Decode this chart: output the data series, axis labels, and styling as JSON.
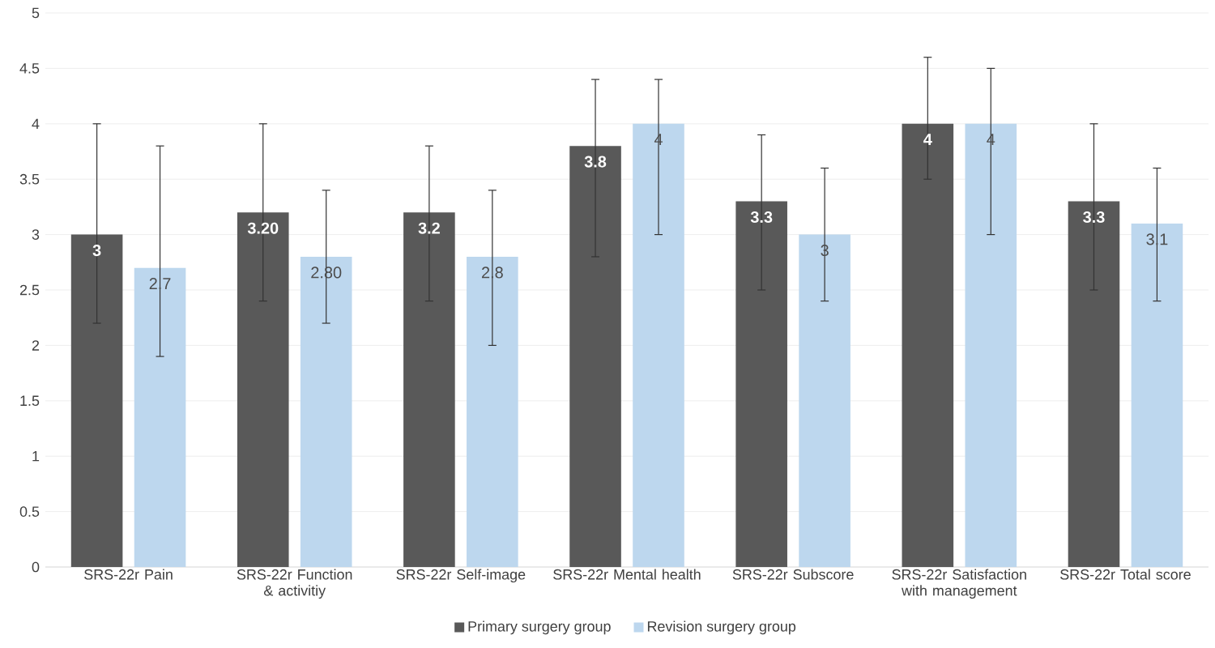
{
  "chart_data": {
    "type": "bar",
    "categories": [
      "SRS-22r Pain",
      "SRS-22r Function & activitiy",
      "SRS-22r Self-image",
      "SRS-22r Mental health",
      "SRS-22r Subscore",
      "SRS-22r Satisfaction with management",
      "SRS-22r Total score"
    ],
    "series": [
      {
        "name": "Primary surgery group",
        "color": "#595959",
        "values": [
          3,
          3.2,
          3.2,
          3.8,
          3.3,
          4,
          3.3
        ],
        "value_labels": [
          "3",
          "3.20",
          "3.2",
          "3.8",
          "3.3",
          "4",
          "3.3"
        ],
        "errors": [
          [
            2.2,
            4.0
          ],
          [
            2.4,
            4.0
          ],
          [
            2.4,
            3.8
          ],
          [
            2.8,
            4.4
          ],
          [
            2.5,
            3.9
          ],
          [
            3.5,
            4.6
          ],
          [
            2.5,
            4.0
          ]
        ]
      },
      {
        "name": "Revision surgery group",
        "color": "#bdd7ee",
        "values": [
          2.7,
          2.8,
          2.8,
          4,
          3,
          4,
          3.1
        ],
        "value_labels": [
          "2.7",
          "2.80",
          "2.8",
          "4",
          "3",
          "4",
          "3.1"
        ],
        "errors": [
          [
            1.9,
            3.8
          ],
          [
            2.2,
            3.4
          ],
          [
            2.0,
            3.4
          ],
          [
            3.0,
            4.4
          ],
          [
            2.4,
            3.6
          ],
          [
            3.0,
            4.5
          ],
          [
            2.4,
            3.6
          ]
        ]
      }
    ],
    "ylim": [
      0,
      5
    ],
    "yticks": [
      0,
      0.5,
      1,
      1.5,
      2,
      2.5,
      3,
      3.5,
      4,
      4.5,
      5
    ],
    "grid": "y",
    "legend": "bottom"
  }
}
